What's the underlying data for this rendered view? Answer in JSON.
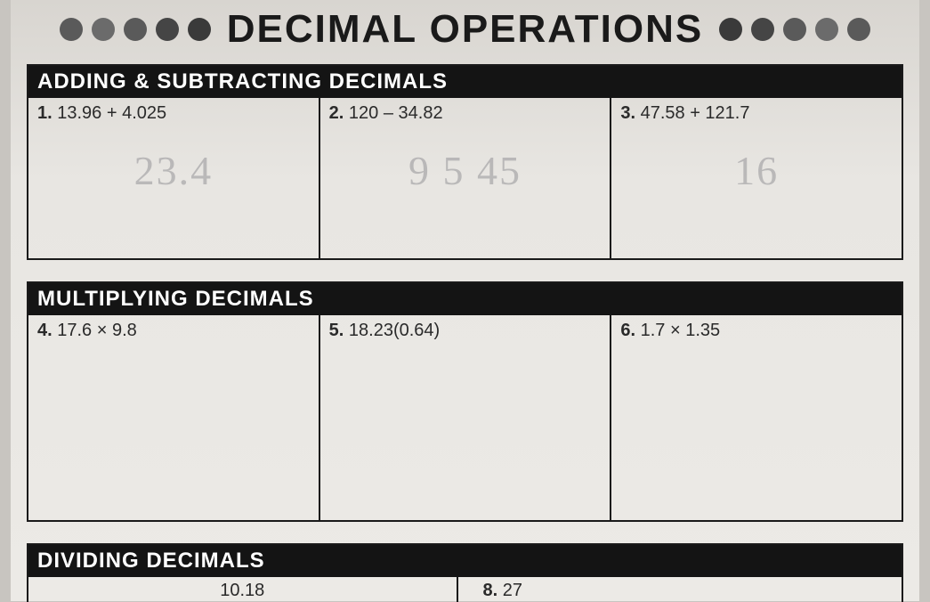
{
  "title": "DECIMAL OPERATIONS",
  "dot_colors_left": [
    "#5a5a5a",
    "#6b6b6b",
    "#5a5a5a",
    "#454545",
    "#3a3a3a"
  ],
  "dot_colors_right": [
    "#3a3a3a",
    "#454545",
    "#5a5a5a",
    "#6b6b6b",
    "#5a5a5a"
  ],
  "sections": {
    "add": {
      "header": "ADDING & SUBTRACTING DECIMALS",
      "problems": [
        {
          "num": "1.",
          "expr": "13.96 + 4.025",
          "pencil": "23.4"
        },
        {
          "num": "2.",
          "expr": "120 – 34.82",
          "pencil": "9 5 45"
        },
        {
          "num": "3.",
          "expr": "47.58 + 121.7",
          "pencil": "16"
        }
      ]
    },
    "mult": {
      "header": "MULTIPLYING DECIMALS",
      "problems": [
        {
          "num": "4.",
          "expr": "17.6 × 9.8"
        },
        {
          "num": "5.",
          "expr": "18.23(0.64)"
        },
        {
          "num": "6.",
          "expr": "1.7 × 1.35"
        }
      ]
    },
    "div": {
      "header": "DIVIDING DECIMALS",
      "partial_left": "10.18",
      "partial_right_num": "8.",
      "partial_right": "27"
    }
  }
}
